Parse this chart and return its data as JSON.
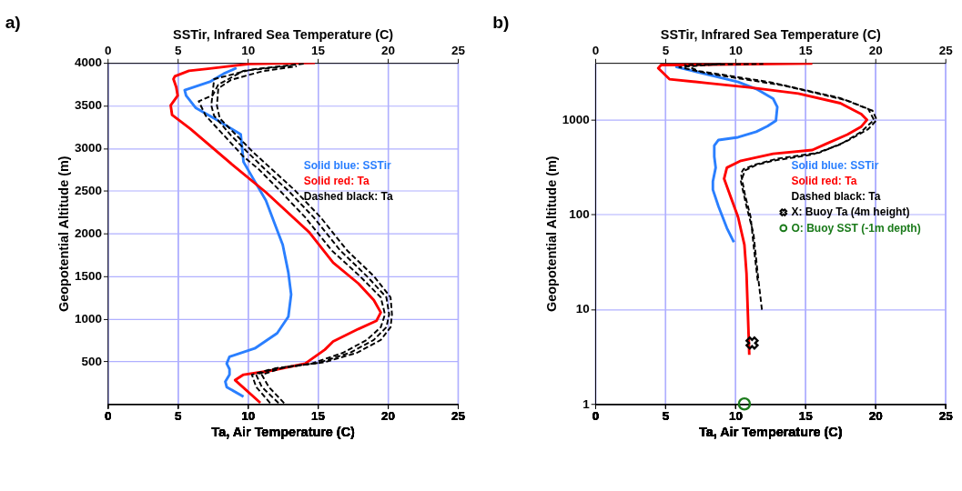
{
  "chart_data": [
    {
      "type": "line",
      "title": "a)",
      "xlabel": "Ta, Air Temperature (C)",
      "x2label": "SSTir, Infrared Sea Temperature (C)",
      "ylabel": "Geopotential Altitude (m)",
      "xlim": [
        0,
        25
      ],
      "xticks": [
        0,
        5,
        10,
        15,
        20,
        25
      ],
      "x2lim": [
        0,
        25
      ],
      "x2ticks": [
        0,
        5,
        10,
        15,
        20,
        25
      ],
      "ylim": [
        0,
        4000
      ],
      "yticks": [
        500,
        1000,
        1500,
        2000,
        2500,
        3000,
        3500,
        4000
      ],
      "grid": true,
      "legend": "right",
      "series": [
        {
          "name": "Solid blue: SSTir",
          "color": "#2a7fff",
          "line_style": "solid",
          "x": [
            9.7,
            8.5,
            8.4,
            8.7,
            8.7,
            8.5,
            8.7,
            10.5,
            12.1,
            12.9,
            13.1,
            12.9,
            12.5,
            11.9,
            11.3,
            10.5,
            9.7,
            9.5,
            7.7,
            6.3,
            5.6,
            5.5,
            7.3,
            8.3,
            9.2
          ],
          "values": [
            84,
            198,
            262,
            343,
            408,
            473,
            554,
            651,
            829,
            1024,
            1283,
            1542,
            1866,
            2125,
            2385,
            2611,
            2838,
            3162,
            3340,
            3470,
            3616,
            3681,
            3778,
            3875,
            3940
          ]
        },
        {
          "name": "Solid red: Ta",
          "color": "#ff0000",
          "line_style": "solid",
          "x": [
            10.9,
            9.1,
            9.7,
            11.7,
            14.1,
            15.5,
            16.1,
            17.9,
            19.2,
            19.5,
            19.0,
            17.9,
            16.1,
            14.4,
            11.3,
            8.9,
            5.9,
            4.6,
            4.5,
            5.0,
            4.9,
            4.7,
            4.8,
            5.8,
            7.3,
            10.1,
            14.8
          ],
          "values": [
            13,
            279,
            343,
            392,
            473,
            636,
            733,
            879,
            976,
            1073,
            1219,
            1413,
            1656,
            2012,
            2482,
            2806,
            3227,
            3389,
            3502,
            3616,
            3713,
            3810,
            3843,
            3907,
            3933,
            3988,
            4000
          ]
        },
        {
          "name": "Dashed black: Ta",
          "color": "#000000",
          "line_style": "dashed",
          "x": [
            11.6,
            10.6,
            10.3,
            11.5,
            14.5,
            16.8,
            18.5,
            19.5,
            19.8,
            19.5,
            18.0,
            16.0,
            14.1,
            12.3,
            10.8,
            9.7,
            8.3,
            7.0,
            6.5,
            7.5,
            7.9,
            9.7,
            13.1
          ],
          "values": [
            10,
            200,
            343,
            400,
            470,
            600,
            750,
            900,
            1050,
            1250,
            1500,
            1800,
            2190,
            2500,
            2750,
            2900,
            3150,
            3380,
            3550,
            3620,
            3745,
            3907,
            3966
          ]
        },
        {
          "color": "#000000",
          "line_style": "dashed",
          "x": [
            12.2,
            11.0,
            10.6,
            12.0,
            15.0,
            17.3,
            19.0,
            19.9,
            20.1,
            19.9,
            18.5,
            16.6,
            14.7,
            12.9,
            11.3,
            10.0,
            8.8,
            7.6,
            7.4,
            7.6,
            10.3,
            14.0
          ],
          "values": [
            10,
            200,
            343,
            420,
            480,
            600,
            750,
            900,
            1050,
            1250,
            1500,
            1800,
            2190,
            2500,
            2741,
            2950,
            3150,
            3380,
            3500,
            3810,
            3923,
            3990
          ]
        },
        {
          "color": "#000000",
          "line_style": "dashed",
          "x": [
            12.6,
            11.5,
            11.0,
            12.6,
            15.5,
            17.8,
            19.5,
            20.2,
            20.3,
            20.2,
            19.0,
            17.1,
            15.2,
            13.4,
            11.8,
            10.4,
            9.2,
            8.0,
            7.8,
            7.9,
            8.8,
            11.0,
            13.5
          ],
          "values": [
            10,
            200,
            343,
            430,
            490,
            600,
            750,
            900,
            1050,
            1250,
            1500,
            1800,
            2190,
            2500,
            2741,
            2950,
            3150,
            3350,
            3500,
            3700,
            3800,
            3900,
            3960
          ]
        }
      ]
    },
    {
      "type": "line",
      "title": "b)",
      "xlabel": "Ta, Air Temperature (C)",
      "x2label": "SSTir, Infrared Sea Temperature (C)",
      "ylabel": "Geopotential Altitude (m)",
      "xlim": [
        0,
        25
      ],
      "xticks": [
        0,
        5,
        10,
        15,
        20,
        25
      ],
      "x2lim": [
        0,
        25
      ],
      "x2ticks": [
        0,
        5,
        10,
        15,
        20,
        25
      ],
      "ylim": [
        1,
        4000
      ],
      "yticks": [
        1,
        10,
        100,
        1000
      ],
      "log": "y",
      "grid": true,
      "legend": "right",
      "series": [
        {
          "name": "Solid blue: SSTir",
          "color": "#2a7fff",
          "line_style": "solid",
          "x": [
            9.9,
            9.4,
            8.8,
            8.4,
            8.4,
            8.6,
            8.5,
            8.5,
            8.8,
            10.2,
            11.5,
            12.3,
            12.9,
            13.0,
            12.7,
            11.5,
            10.2,
            8.6,
            7.0,
            5.8,
            6.2
          ],
          "values": [
            51,
            72,
            122,
            183,
            224,
            313,
            409,
            535,
            613,
            655,
            750,
            857,
            980,
            1371,
            1676,
            2122,
            2512,
            2869,
            3280,
            3630,
            3800
          ]
        },
        {
          "name": "Solid red: Ta",
          "color": "#ff0000",
          "line_style": "solid",
          "x": [
            11.0,
            10.9,
            10.8,
            10.65,
            10.2,
            9.7,
            9.2,
            9.4,
            10.4,
            12.7,
            15.5,
            16.5,
            18.0,
            19.0,
            19.4,
            19.0,
            17.5,
            14.5,
            11.0,
            8.0,
            5.3,
            4.5,
            4.7,
            9.8,
            15.5
          ],
          "values": [
            3.3,
            8.9,
            24,
            48,
            94,
            150,
            239,
            313,
            370,
            438,
            480,
            560,
            700,
            850,
            1000,
            1150,
            1500,
            1900,
            2200,
            2450,
            2690,
            3510,
            3800,
            3850,
            3950
          ]
        },
        {
          "name": "Dashed black: Ta",
          "color": "#000000",
          "line_style": "dashed",
          "x": [
            11.9,
            11.6,
            11.3,
            10.8,
            10.4,
            10.7,
            11.5,
            12.7,
            15.5,
            17.5,
            19.0,
            19.9,
            19.5,
            17.5,
            12.5,
            7.4,
            6.4,
            12.0
          ],
          "values": [
            9.9,
            24,
            63,
            122,
            224,
            293,
            334,
            370,
            430,
            550,
            750,
            1000,
            1300,
            1700,
            2500,
            3280,
            3800,
            3900
          ]
        },
        {
          "color": "#000000",
          "line_style": "dashed",
          "x": [
            11.6,
            11.3,
            11.1,
            10.7,
            10.4,
            10.6,
            11.5,
            13.0,
            16.0,
            18.0,
            19.5,
            20.1,
            19.8,
            18.0,
            13.5,
            8.0,
            6.0,
            9.0
          ],
          "values": [
            20,
            48,
            94,
            160,
            272,
            303,
            340,
            390,
            450,
            600,
            800,
            1000,
            1250,
            1600,
            2300,
            3100,
            3600,
            3900
          ]
        },
        {
          "type": "scatter",
          "name": "X: Buoy Ta (4m height)",
          "color": "#000000",
          "marker": "cross",
          "x": [
            11.2
          ],
          "values": [
            4.4
          ]
        },
        {
          "type": "scatter",
          "name": "O: Buoy SST (-1m depth)",
          "color": "#1a7a1a",
          "marker": "circle",
          "x": [
            10.65
          ],
          "values": [
            1
          ]
        }
      ]
    }
  ]
}
